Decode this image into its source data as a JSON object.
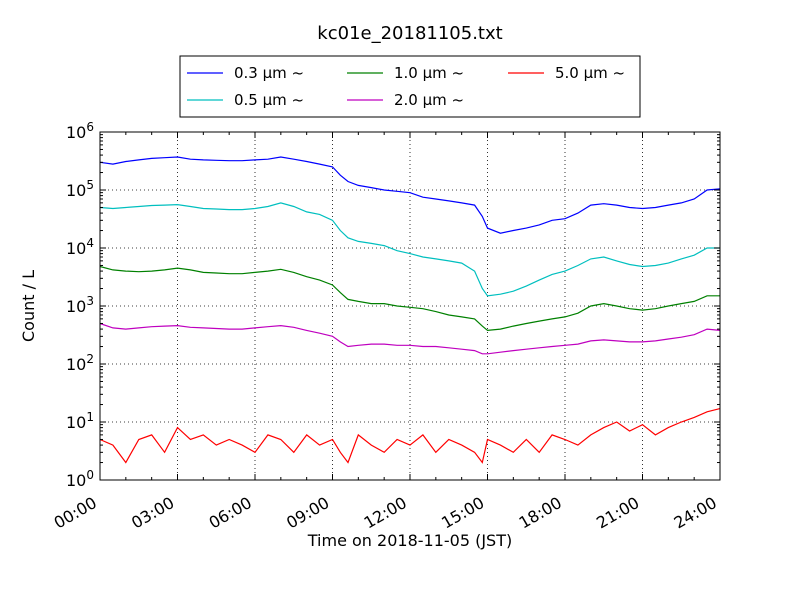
{
  "chart_data": {
    "type": "line",
    "title": "kc01e_20181105.txt",
    "xlabel": "Time on 2018-11-05 (JST)",
    "ylabel": "Count / L",
    "x_ticks": [
      "00:00",
      "03:00",
      "06:00",
      "09:00",
      "12:00",
      "15:00",
      "18:00",
      "21:00",
      "24:00"
    ],
    "x_range_hours": [
      0,
      24
    ],
    "y_scale": "log",
    "y_ticks": [
      {
        "value": 1,
        "base": "10",
        "exp": "0"
      },
      {
        "value": 10,
        "base": "10",
        "exp": "1"
      },
      {
        "value": 100,
        "base": "10",
        "exp": "2"
      },
      {
        "value": 1000,
        "base": "10",
        "exp": "3"
      },
      {
        "value": 10000,
        "base": "10",
        "exp": "4"
      },
      {
        "value": 100000,
        "base": "10",
        "exp": "5"
      },
      {
        "value": 1000000,
        "base": "10",
        "exp": "6"
      }
    ],
    "ylim": [
      1,
      1000000
    ],
    "grid": true,
    "legend_position": "top-center",
    "series": [
      {
        "name": "0.3 μm ~",
        "color": "#0000ff",
        "x": [
          0,
          0.5,
          1,
          1.5,
          2,
          2.5,
          3,
          3.5,
          4,
          4.5,
          5,
          5.5,
          6,
          6.5,
          7,
          7.5,
          8,
          8.5,
          9,
          9.3,
          9.6,
          10,
          10.5,
          11,
          11.5,
          12,
          12.5,
          13,
          13.5,
          14,
          14.5,
          14.8,
          15,
          15.5,
          16,
          16.5,
          17,
          17.5,
          18,
          18.5,
          19,
          19.5,
          20,
          20.5,
          21,
          21.5,
          22,
          22.5,
          23,
          23.5,
          24
        ],
        "y": [
          300000,
          280000,
          310000,
          330000,
          350000,
          360000,
          370000,
          340000,
          330000,
          325000,
          320000,
          320000,
          330000,
          340000,
          370000,
          340000,
          310000,
          280000,
          250000,
          180000,
          140000,
          120000,
          110000,
          100000,
          95000,
          90000,
          75000,
          70000,
          65000,
          60000,
          55000,
          35000,
          22000,
          18000,
          20000,
          22000,
          25000,
          30000,
          32000,
          40000,
          55000,
          58000,
          55000,
          50000,
          48000,
          50000,
          55000,
          60000,
          70000,
          100000,
          105000
        ]
      },
      {
        "name": "0.5 μm ~",
        "color": "#00bfbf",
        "x": [
          0,
          0.5,
          1,
          1.5,
          2,
          2.5,
          3,
          3.5,
          4,
          4.5,
          5,
          5.5,
          6,
          6.5,
          7,
          7.5,
          8,
          8.5,
          9,
          9.3,
          9.6,
          10,
          10.5,
          11,
          11.5,
          12,
          12.5,
          13,
          13.5,
          14,
          14.5,
          14.8,
          15,
          15.5,
          16,
          16.5,
          17,
          17.5,
          18,
          18.5,
          19,
          19.5,
          20,
          20.5,
          21,
          21.5,
          22,
          22.5,
          23,
          23.5,
          24
        ],
        "y": [
          50000,
          48000,
          50000,
          52000,
          54000,
          55000,
          56000,
          52000,
          48000,
          47000,
          46000,
          46000,
          48000,
          52000,
          60000,
          52000,
          42000,
          38000,
          30000,
          20000,
          15000,
          13000,
          12000,
          11000,
          9000,
          8000,
          7000,
          6500,
          6000,
          5500,
          4000,
          2000,
          1500,
          1600,
          1800,
          2200,
          2800,
          3500,
          4000,
          5000,
          6500,
          7000,
          6000,
          5200,
          4800,
          5000,
          5500,
          6500,
          7500,
          10000,
          10000
        ]
      },
      {
        "name": "1.0 μm ~",
        "color": "#008000",
        "x": [
          0,
          0.5,
          1,
          1.5,
          2,
          2.5,
          3,
          3.5,
          4,
          4.5,
          5,
          5.5,
          6,
          6.5,
          7,
          7.5,
          8,
          8.5,
          9,
          9.3,
          9.6,
          10,
          10.5,
          11,
          11.5,
          12,
          12.5,
          13,
          13.5,
          14,
          14.5,
          14.8,
          15,
          15.5,
          16,
          16.5,
          17,
          17.5,
          18,
          18.5,
          19,
          19.5,
          20,
          20.5,
          21,
          21.5,
          22,
          22.5,
          23,
          23.5,
          24
        ],
        "y": [
          4800,
          4200,
          4000,
          3900,
          4000,
          4200,
          4500,
          4200,
          3800,
          3700,
          3600,
          3600,
          3800,
          4000,
          4300,
          3800,
          3200,
          2800,
          2300,
          1700,
          1300,
          1200,
          1100,
          1100,
          1000,
          950,
          900,
          800,
          700,
          650,
          600,
          450,
          380,
          400,
          450,
          500,
          550,
          600,
          650,
          750,
          1000,
          1100,
          1000,
          900,
          850,
          900,
          1000,
          1100,
          1200,
          1500,
          1500
        ]
      },
      {
        "name": "2.0 μm ~",
        "color": "#bf00bf",
        "x": [
          0,
          0.5,
          1,
          1.5,
          2,
          2.5,
          3,
          3.5,
          4,
          4.5,
          5,
          5.5,
          6,
          6.5,
          7,
          7.5,
          8,
          8.5,
          9,
          9.3,
          9.6,
          10,
          10.5,
          11,
          11.5,
          12,
          12.5,
          13,
          13.5,
          14,
          14.5,
          14.8,
          15,
          15.5,
          16,
          16.5,
          17,
          17.5,
          18,
          18.5,
          19,
          19.5,
          20,
          20.5,
          21,
          21.5,
          22,
          22.5,
          23,
          23.5,
          24
        ],
        "y": [
          500,
          420,
          400,
          420,
          440,
          450,
          460,
          430,
          420,
          410,
          400,
          400,
          420,
          440,
          460,
          430,
          380,
          340,
          300,
          240,
          200,
          210,
          220,
          220,
          210,
          210,
          200,
          200,
          190,
          180,
          170,
          150,
          150,
          160,
          170,
          180,
          190,
          200,
          210,
          220,
          250,
          260,
          250,
          240,
          240,
          250,
          270,
          290,
          320,
          400,
          380
        ]
      },
      {
        "name": "5.0 μm ~",
        "color": "#ff0000",
        "x": [
          0,
          0.5,
          1,
          1.5,
          2,
          2.5,
          3,
          3.5,
          4,
          4.5,
          5,
          5.5,
          6,
          6.5,
          7,
          7.5,
          8,
          8.5,
          9,
          9.3,
          9.6,
          10,
          10.5,
          11,
          11.5,
          12,
          12.5,
          13,
          13.5,
          14,
          14.5,
          14.8,
          15,
          15.5,
          16,
          16.5,
          17,
          17.5,
          18,
          18.5,
          19,
          19.5,
          20,
          20.5,
          21,
          21.5,
          22,
          22.5,
          23,
          23.5,
          24
        ],
        "y": [
          5,
          4,
          2,
          5,
          6,
          3,
          8,
          5,
          6,
          4,
          5,
          4,
          3,
          6,
          5,
          3,
          6,
          4,
          5,
          3,
          2,
          6,
          4,
          3,
          5,
          4,
          6,
          3,
          5,
          4,
          3,
          2,
          5,
          4,
          3,
          5,
          3,
          6,
          5,
          4,
          6,
          8,
          10,
          7,
          9,
          6,
          8,
          10,
          12,
          15,
          17
        ]
      }
    ]
  }
}
